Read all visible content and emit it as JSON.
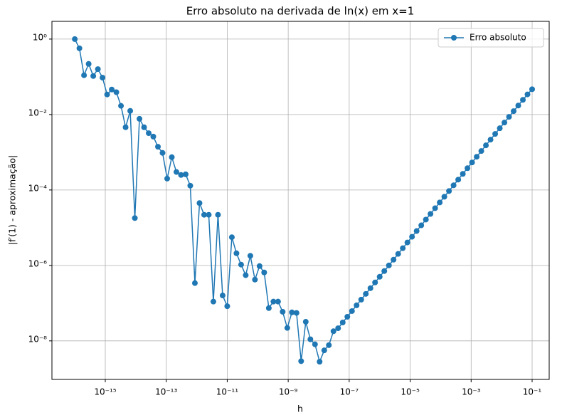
{
  "chart_data": {
    "type": "line",
    "title": "Erro absoluto na derivada de ln(x) em x=1",
    "x_label": "h",
    "y_label": "|f′(1) - aproximação|",
    "log_x": true,
    "log_y": true,
    "grid": true,
    "legend_position": "upper right",
    "x": [
      1e-16,
      1.418e-16,
      2.009e-16,
      2.848e-16,
      4.037e-16,
      5.722e-16,
      8.111e-16,
      1.15e-15,
      1.63e-15,
      2.31e-15,
      3.275e-15,
      4.642e-15,
      6.579e-15,
      9.326e-15,
      1.322e-14,
      1.874e-14,
      2.656e-14,
      3.765e-14,
      5.337e-14,
      7.565e-14,
      1.072e-13,
      1.52e-13,
      2.154e-13,
      3.054e-13,
      4.329e-13,
      6.136e-13,
      8.697e-13,
      1.233e-12,
      1.748e-12,
      2.477e-12,
      3.511e-12,
      4.977e-12,
      7.055e-12,
      1e-11,
      1.418e-11,
      2.009e-11,
      2.848e-11,
      4.037e-11,
      5.722e-11,
      8.111e-11,
      1.15e-10,
      1.63e-10,
      2.31e-10,
      3.275e-10,
      4.642e-10,
      6.579e-10,
      9.326e-10,
      1.322e-09,
      1.874e-09,
      2.656e-09,
      3.765e-09,
      5.337e-09,
      7.565e-09,
      1.072e-08,
      1.52e-08,
      2.154e-08,
      3.054e-08,
      4.329e-08,
      6.136e-08,
      8.697e-08,
      1.233e-07,
      1.748e-07,
      2.477e-07,
      3.511e-07,
      4.977e-07,
      7.055e-07,
      1e-06,
      1.418e-06,
      2.009e-06,
      2.848e-06,
      4.037e-06,
      5.722e-06,
      8.111e-06,
      1.15e-05,
      1.63e-05,
      2.31e-05,
      3.275e-05,
      4.642e-05,
      6.579e-05,
      9.326e-05,
      0.0001322,
      0.0001874,
      0.0002656,
      0.0003765,
      0.0005337,
      0.0007565,
      0.001072,
      0.00152,
      0.002154,
      0.003054,
      0.004329,
      0.006136,
      0.008697,
      0.01233,
      0.01748,
      0.02477,
      0.03511,
      0.04977,
      0.07055,
      0.1
    ],
    "series": [
      {
        "name": "Erro absoluto",
        "color": "#1f77b4",
        "values": [
          1.0,
          0.57,
          0.11,
          0.22,
          0.105,
          0.16,
          0.095,
          0.034,
          0.046,
          0.039,
          0.017,
          0.0046,
          0.0125,
          1.8e-05,
          0.0077,
          0.0046,
          0.0032,
          0.0026,
          0.0014,
          0.00096,
          0.0002,
          0.00074,
          0.0003,
          0.00025,
          0.00026,
          0.00013,
          3.4e-07,
          4.5e-05,
          2.2e-05,
          2.2e-05,
          1.1e-07,
          2.2e-05,
          1.6e-07,
          8.3e-08,
          5.6e-06,
          2.1e-06,
          1.05e-06,
          5.5e-07,
          1.8e-06,
          4.2e-07,
          9.6e-07,
          6.5e-07,
          7.4e-08,
          1.1e-07,
          1.1e-07,
          5.9e-08,
          2.2e-08,
          5.7e-08,
          5.5e-08,
          2.9e-09,
          3.2e-08,
          1.1e-08,
          8.1e-09,
          2.8e-09,
          5.6e-09,
          7.7e-09,
          1.8e-08,
          2.16e-08,
          3.07e-08,
          4.35e-08,
          6.17e-08,
          8.74e-08,
          1.24e-07,
          1.76e-07,
          2.49e-07,
          3.53e-07,
          5e-07,
          7.09e-07,
          1e-06,
          1.42e-06,
          2.02e-06,
          2.86e-06,
          4.06e-06,
          5.75e-06,
          8.15e-06,
          1.155e-05,
          1.64e-05,
          2.32e-05,
          3.29e-05,
          4.66e-05,
          6.61e-05,
          9.37e-05,
          0.000133,
          0.000188,
          0.000267,
          0.000378,
          0.000536,
          0.000759,
          0.001076,
          0.001524,
          0.00216,
          0.00306,
          0.00433,
          0.00613,
          0.00869,
          0.0123,
          0.0173,
          0.0245,
          0.0342,
          0.0469
        ]
      }
    ],
    "xlim": [
      1.78e-17,
      0.363
    ],
    "ylim": [
      9.5e-10,
      2.95
    ],
    "xticks": [
      {
        "value": 1e-15,
        "label": "10⁻¹⁵"
      },
      {
        "value": 1e-13,
        "label": "10⁻¹³"
      },
      {
        "value": 1e-11,
        "label": "10⁻¹¹"
      },
      {
        "value": 1e-09,
        "label": "10⁻⁹"
      },
      {
        "value": 1e-07,
        "label": "10⁻⁷"
      },
      {
        "value": 1e-05,
        "label": "10⁻⁵"
      },
      {
        "value": 0.001,
        "label": "10⁻³"
      },
      {
        "value": 0.1,
        "label": "10⁻¹"
      }
    ],
    "yticks": [
      {
        "value": 1,
        "label": "10⁰"
      },
      {
        "value": 0.01,
        "label": "10⁻²"
      },
      {
        "value": 0.0001,
        "label": "10⁻⁴"
      },
      {
        "value": 1e-06,
        "label": "10⁻⁶"
      },
      {
        "value": 1e-08,
        "label": "10⁻⁸"
      }
    ]
  }
}
